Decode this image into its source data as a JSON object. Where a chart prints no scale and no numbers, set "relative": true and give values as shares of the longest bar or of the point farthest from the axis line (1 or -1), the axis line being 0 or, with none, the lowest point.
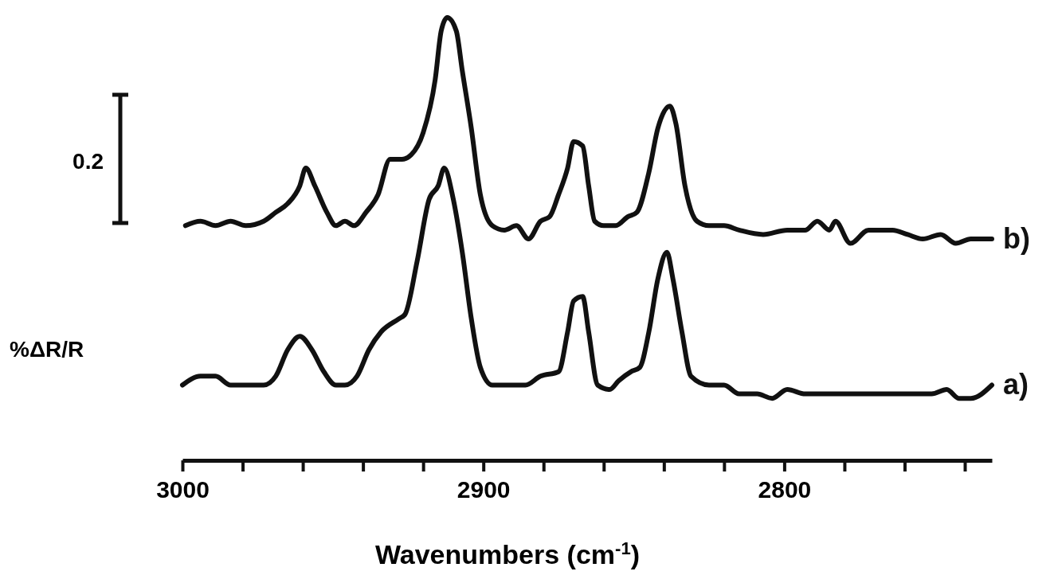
{
  "chart_data": {
    "type": "line",
    "relative": true,
    "xlabel": "Wavenumbers (cm$^{-1}$)",
    "ylabel": "%ΔR/R",
    "annotations": [
      "0.2"
    ],
    "xlim": [
      3000,
      2731
    ],
    "xticks": [
      3000,
      {
        "value": 2980,
        "label": null
      },
      {
        "value": 2960,
        "label": null
      },
      {
        "value": 2940,
        "label": null
      },
      {
        "value": 2920,
        "label": null
      },
      2900,
      {
        "value": 2880,
        "label": null
      },
      {
        "value": 2860,
        "label": null
      },
      {
        "value": 2840,
        "label": null
      },
      {
        "value": 2820,
        "label": null
      },
      2800,
      {
        "value": 2780,
        "label": null
      },
      {
        "value": 2760,
        "label": null
      },
      {
        "value": 2740,
        "label": null
      }
    ],
    "series": [
      {
        "name": "a)",
        "color": "#111111",
        "x": [
          3000,
          2994,
          2989,
          2984,
          2979,
          2973,
          2969,
          2965,
          2961,
          2957,
          2953,
          2949,
          2946,
          2942,
          2938,
          2934,
          2928,
          2926,
          2922,
          2918,
          2915,
          2913,
          2910,
          2907,
          2904,
          2901,
          2897,
          2891,
          2886,
          2881,
          2875,
          2872,
          2870,
          2867,
          2865,
          2862,
          2858,
          2855,
          2851,
          2848,
          2845,
          2842,
          2839,
          2837,
          2834,
          2831,
          2825,
          2820,
          2815,
          2809,
          2804,
          2799,
          2793,
          2788,
          2783,
          2778,
          2772,
          2767,
          2762,
          2756,
          2751,
          2746,
          2742,
          2738,
          2731
        ],
        "values": [
          0.17,
          0.19,
          0.19,
          0.17,
          0.17,
          0.17,
          0.19,
          0.25,
          0.28,
          0.25,
          0.2,
          0.17,
          0.17,
          0.19,
          0.25,
          0.29,
          0.32,
          0.33,
          0.45,
          0.59,
          0.62,
          0.66,
          0.59,
          0.47,
          0.32,
          0.21,
          0.17,
          0.17,
          0.17,
          0.19,
          0.2,
          0.29,
          0.36,
          0.37,
          0.29,
          0.17,
          0.16,
          0.18,
          0.2,
          0.21,
          0.29,
          0.41,
          0.47,
          0.41,
          0.29,
          0.19,
          0.17,
          0.17,
          0.15,
          0.15,
          0.14,
          0.16,
          0.15,
          0.15,
          0.15,
          0.15,
          0.15,
          0.15,
          0.15,
          0.15,
          0.15,
          0.16,
          0.14,
          0.14,
          0.17
        ]
      },
      {
        "name": "b)",
        "color": "#111111",
        "x": [
          2999,
          2994,
          2989,
          2984,
          2979,
          2973,
          2969,
          2965,
          2961,
          2959,
          2956,
          2952,
          2949,
          2946,
          2943,
          2939,
          2935,
          2931,
          2927,
          2924,
          2920,
          2916,
          2914,
          2912,
          2909,
          2907,
          2904,
          2901,
          2897,
          2893,
          2889,
          2885,
          2881,
          2878,
          2875,
          2872,
          2870,
          2867,
          2865,
          2863,
          2860,
          2856,
          2852,
          2849,
          2845,
          2842,
          2838,
          2836,
          2833,
          2829,
          2825,
          2820,
          2815,
          2807,
          2799,
          2793,
          2789,
          2785,
          2783,
          2778,
          2772,
          2768,
          2764,
          2759,
          2754,
          2748,
          2743,
          2738,
          2731
        ],
        "values": [
          0.53,
          0.54,
          0.53,
          0.54,
          0.53,
          0.54,
          0.56,
          0.58,
          0.62,
          0.66,
          0.62,
          0.56,
          0.53,
          0.54,
          0.53,
          0.56,
          0.6,
          0.68,
          0.68,
          0.69,
          0.74,
          0.86,
          0.97,
          1,
          0.97,
          0.88,
          0.75,
          0.6,
          0.53,
          0.52,
          0.53,
          0.5,
          0.54,
          0.55,
          0.6,
          0.66,
          0.72,
          0.71,
          0.62,
          0.54,
          0.53,
          0.53,
          0.55,
          0.56,
          0.65,
          0.75,
          0.8,
          0.76,
          0.62,
          0.54,
          0.53,
          0.53,
          0.52,
          0.51,
          0.52,
          0.52,
          0.54,
          0.52,
          0.54,
          0.49,
          0.52,
          0.52,
          0.52,
          0.51,
          0.5,
          0.51,
          0.49,
          0.5,
          0.5
        ]
      }
    ]
  }
}
